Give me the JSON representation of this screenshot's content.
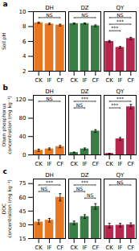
{
  "chart_data": [
    {
      "type": "bar",
      "title": "a",
      "ylabel": "Soil pH",
      "categories": [
        "CK",
        "IF",
        "CF"
      ],
      "series": [
        {
          "name": "DH",
          "color": "#E87722",
          "values": [
            8.5,
            8.35,
            8.2
          ],
          "errors": [
            0.1,
            0.1,
            0.12
          ]
        },
        {
          "name": "DZ",
          "color": "#3A7D44",
          "values": [
            8.4,
            8.4,
            8.1
          ],
          "errors": [
            0.08,
            0.08,
            0.12
          ]
        },
        {
          "name": "QY",
          "color": "#B5274D",
          "values": [
            6.0,
            5.2,
            6.4
          ],
          "errors": [
            0.12,
            0.12,
            0.15
          ]
        }
      ],
      "ylim": [
        2,
        10
      ],
      "yticks": [
        2,
        4,
        6,
        8,
        10
      ],
      "annotations": [
        {
          "series": "DH",
          "from": "CK",
          "to": "CF",
          "text": "NS"
        },
        {
          "series": "DZ",
          "from": "CK",
          "to": "CF",
          "text": "NS"
        },
        {
          "series": "QY",
          "from": "CK",
          "to": "CF",
          "text": "NS"
        },
        {
          "series": "QY",
          "from": "CK",
          "to": "CF",
          "text": "***"
        },
        {
          "series": "QY",
          "from": "CK",
          "to": "IF",
          "text": "***"
        }
      ]
    },
    {
      "type": "bar",
      "title": "b",
      "ylabel": "Olsen phosphorus\nconcentration (mg kg⁻¹)",
      "categories": [
        "CK",
        "IF",
        "CF"
      ],
      "series": [
        {
          "name": "DH",
          "color": "#E87722",
          "values": [
            10,
            13,
            18
          ],
          "errors": [
            2.5,
            2,
            2.5
          ]
        },
        {
          "name": "DZ",
          "color": "#3A7D44",
          "values": [
            5,
            13,
            52
          ],
          "errors": [
            1,
            2,
            3
          ]
        },
        {
          "name": "QY",
          "color": "#B5274D",
          "values": [
            3,
            35,
            105
          ],
          "errors": [
            0.5,
            3,
            5
          ]
        }
      ],
      "ylim": [
        0,
        130
      ],
      "yticks": [
        0,
        40,
        80,
        120
      ],
      "annotations": [
        {
          "series": "DH",
          "from": "CK",
          "to": "CF",
          "text": "NS"
        },
        {
          "series": "DZ",
          "from": "CK",
          "to": "CF",
          "text": "***"
        },
        {
          "series": "DZ",
          "from": "CK",
          "to": "IF",
          "text": "NS"
        },
        {
          "series": "QY",
          "from": "CK",
          "to": "CF",
          "text": "***"
        },
        {
          "series": "QY",
          "from": "CK",
          "to": "IF",
          "text": "***"
        }
      ]
    },
    {
      "type": "bar",
      "title": "c",
      "ylabel": "DOC\nconcentration (mg kg⁻¹)",
      "categories": [
        "CK",
        "IF",
        "CF"
      ],
      "series": [
        {
          "name": "DH",
          "color": "#E87722",
          "values": [
            33,
            35,
            60
          ],
          "errors": [
            2.5,
            2,
            4
          ]
        },
        {
          "name": "DZ",
          "color": "#3A7D44",
          "values": [
            32,
            39,
            50
          ],
          "errors": [
            2,
            2,
            3
          ]
        },
        {
          "name": "QY",
          "color": "#B5274D",
          "values": [
            29,
            29.5,
            30
          ],
          "errors": [
            2.5,
            2,
            2
          ]
        }
      ],
      "ylim": [
        15,
        80
      ],
      "yticks": [
        15,
        30,
        45,
        60,
        75
      ],
      "annotations": [
        {
          "series": "DH",
          "from": "CK",
          "to": "CF",
          "text": "***"
        },
        {
          "series": "DH",
          "from": "CK",
          "to": "IF",
          "text": "NS"
        },
        {
          "series": "DZ",
          "from": "CK",
          "to": "CF",
          "text": "***"
        },
        {
          "series": "DZ",
          "from": "CK",
          "to": "IF",
          "text": "NS"
        },
        {
          "series": "DZ",
          "from": "IF",
          "to": "CF",
          "text": "NS"
        },
        {
          "series": "QY",
          "from": "CK",
          "to": "CF",
          "text": "NS"
        }
      ]
    }
  ]
}
